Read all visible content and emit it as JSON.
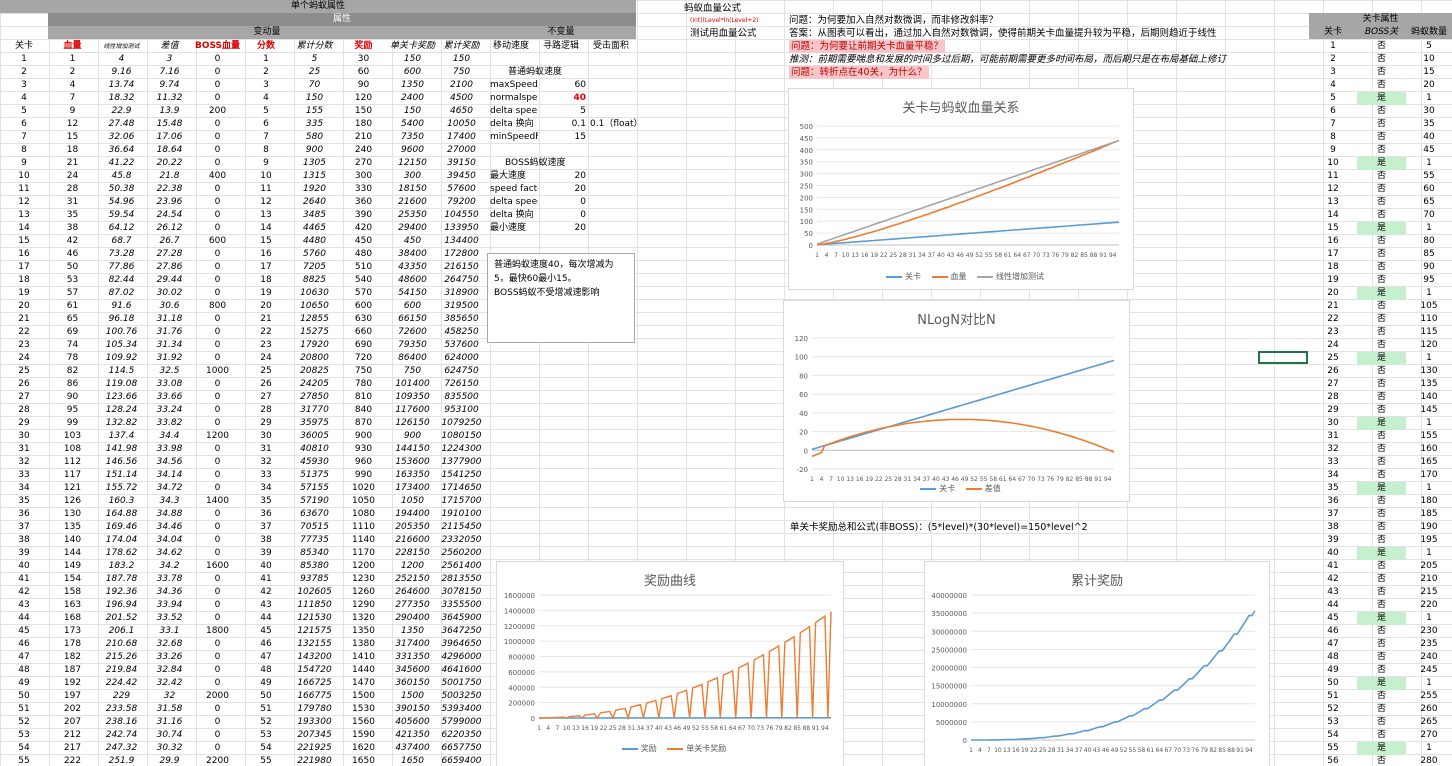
{
  "header": {
    "title": "单个蚂蚁属性",
    "group_attr": "属性",
    "group_var": "变动量",
    "group_const": "不变量",
    "formula_title": "蚂蚁血量公式",
    "formula_text": "(int)(Level*ln(Level+2)",
    "formula_label": "测试用血量公式",
    "right_title": "关卡属性"
  },
  "columns": [
    "关卡",
    "血量",
    "线性增加测试",
    "差值",
    "BOSS血量",
    "分数",
    "累计分数",
    "奖励",
    "单关卡奖励",
    "累计奖励",
    "移动速度",
    "寻路逻辑",
    "受击面积"
  ],
  "right_columns": [
    "关卡",
    "BOSS关",
    "蚂蚁数量"
  ],
  "rows": [
    [
      "1",
      "1",
      "4",
      "3",
      "0",
      "1",
      "5",
      "30",
      "150",
      "150"
    ],
    [
      "2",
      "2",
      "9.16",
      "7.16",
      "0",
      "2",
      "25",
      "60",
      "600",
      "750"
    ],
    [
      "3",
      "4",
      "13.74",
      "9.74",
      "0",
      "3",
      "70",
      "90",
      "1350",
      "2100"
    ],
    [
      "4",
      "7",
      "18.32",
      "11.32",
      "0",
      "4",
      "150",
      "120",
      "2400",
      "4500"
    ],
    [
      "5",
      "9",
      "22.9",
      "13.9",
      "200",
      "5",
      "155",
      "150",
      "150",
      "4650"
    ],
    [
      "6",
      "12",
      "27.48",
      "15.48",
      "0",
      "6",
      "335",
      "180",
      "5400",
      "10050"
    ],
    [
      "7",
      "15",
      "32.06",
      "17.06",
      "0",
      "7",
      "580",
      "210",
      "7350",
      "17400"
    ],
    [
      "8",
      "18",
      "36.64",
      "18.64",
      "0",
      "8",
      "900",
      "240",
      "9600",
      "27000"
    ],
    [
      "9",
      "21",
      "41.22",
      "20.22",
      "0",
      "9",
      "1305",
      "270",
      "12150",
      "39150"
    ],
    [
      "10",
      "24",
      "45.8",
      "21.8",
      "400",
      "10",
      "1315",
      "300",
      "300",
      "39450"
    ],
    [
      "11",
      "28",
      "50.38",
      "22.38",
      "0",
      "11",
      "1920",
      "330",
      "18150",
      "57600"
    ],
    [
      "12",
      "31",
      "54.96",
      "23.96",
      "0",
      "12",
      "2640",
      "360",
      "21600",
      "79200"
    ],
    [
      "13",
      "35",
      "59.54",
      "24.54",
      "0",
      "13",
      "3485",
      "390",
      "25350",
      "104550"
    ],
    [
      "14",
      "38",
      "64.12",
      "26.12",
      "0",
      "14",
      "4465",
      "420",
      "29400",
      "133950"
    ],
    [
      "15",
      "42",
      "68.7",
      "26.7",
      "600",
      "15",
      "4480",
      "450",
      "450",
      "134400"
    ],
    [
      "16",
      "46",
      "73.28",
      "27.28",
      "0",
      "16",
      "5760",
      "480",
      "38400",
      "172800"
    ],
    [
      "17",
      "50",
      "77.86",
      "27.86",
      "0",
      "17",
      "7205",
      "510",
      "43350",
      "216150"
    ],
    [
      "18",
      "53",
      "82.44",
      "29.44",
      "0",
      "18",
      "8825",
      "540",
      "48600",
      "264750"
    ],
    [
      "19",
      "57",
      "87.02",
      "30.02",
      "0",
      "19",
      "10630",
      "570",
      "54150",
      "318900"
    ],
    [
      "20",
      "61",
      "91.6",
      "30.6",
      "800",
      "20",
      "10650",
      "600",
      "600",
      "319500"
    ],
    [
      "21",
      "65",
      "96.18",
      "31.18",
      "0",
      "21",
      "12855",
      "630",
      "66150",
      "385650"
    ],
    [
      "22",
      "69",
      "100.76",
      "31.76",
      "0",
      "22",
      "15275",
      "660",
      "72600",
      "458250"
    ],
    [
      "23",
      "74",
      "105.34",
      "31.34",
      "0",
      "23",
      "17920",
      "690",
      "79350",
      "537600"
    ],
    [
      "24",
      "78",
      "109.92",
      "31.92",
      "0",
      "24",
      "20800",
      "720",
      "86400",
      "624000"
    ],
    [
      "25",
      "82",
      "114.5",
      "32.5",
      "1000",
      "25",
      "20825",
      "750",
      "750",
      "624750"
    ],
    [
      "26",
      "86",
      "119.08",
      "33.08",
      "0",
      "26",
      "24205",
      "780",
      "101400",
      "726150"
    ],
    [
      "27",
      "90",
      "123.66",
      "33.66",
      "0",
      "27",
      "27850",
      "810",
      "109350",
      "835500"
    ],
    [
      "28",
      "95",
      "128.24",
      "33.24",
      "0",
      "28",
      "31770",
      "840",
      "117600",
      "953100"
    ],
    [
      "29",
      "99",
      "132.82",
      "33.82",
      "0",
      "29",
      "35975",
      "870",
      "126150",
      "1079250"
    ],
    [
      "30",
      "103",
      "137.4",
      "34.4",
      "1200",
      "30",
      "36005",
      "900",
      "900",
      "1080150"
    ],
    [
      "31",
      "108",
      "141.98",
      "33.98",
      "0",
      "31",
      "40810",
      "930",
      "144150",
      "1224300"
    ],
    [
      "32",
      "112",
      "146.56",
      "34.56",
      "0",
      "32",
      "45930",
      "960",
      "153600",
      "1377900"
    ],
    [
      "33",
      "117",
      "151.14",
      "34.14",
      "0",
      "33",
      "51375",
      "990",
      "163350",
      "1541250"
    ],
    [
      "34",
      "121",
      "155.72",
      "34.72",
      "0",
      "34",
      "57155",
      "1020",
      "173400",
      "1714650"
    ],
    [
      "35",
      "126",
      "160.3",
      "34.3",
      "1400",
      "35",
      "57190",
      "1050",
      "1050",
      "1715700"
    ],
    [
      "36",
      "130",
      "164.88",
      "34.88",
      "0",
      "36",
      "63670",
      "1080",
      "194400",
      "1910100"
    ],
    [
      "37",
      "135",
      "169.46",
      "34.46",
      "0",
      "37",
      "70515",
      "1110",
      "205350",
      "2115450"
    ],
    [
      "38",
      "140",
      "174.04",
      "34.04",
      "0",
      "38",
      "77735",
      "1140",
      "216600",
      "2332050"
    ],
    [
      "39",
      "144",
      "178.62",
      "34.62",
      "0",
      "39",
      "85340",
      "1170",
      "228150",
      "2560200"
    ],
    [
      "40",
      "149",
      "183.2",
      "34.2",
      "1600",
      "40",
      "85380",
      "1200",
      "1200",
      "2561400"
    ],
    [
      "41",
      "154",
      "187.78",
      "33.78",
      "0",
      "41",
      "93785",
      "1230",
      "252150",
      "2813550"
    ],
    [
      "42",
      "158",
      "192.36",
      "34.36",
      "0",
      "42",
      "102605",
      "1260",
      "264600",
      "3078150"
    ],
    [
      "43",
      "163",
      "196.94",
      "33.94",
      "0",
      "43",
      "111850",
      "1290",
      "277350",
      "3355500"
    ],
    [
      "44",
      "168",
      "201.52",
      "33.52",
      "0",
      "44",
      "121530",
      "1320",
      "290400",
      "3645900"
    ],
    [
      "45",
      "173",
      "206.1",
      "33.1",
      "1800",
      "45",
      "121575",
      "1350",
      "1350",
      "3647250"
    ],
    [
      "46",
      "178",
      "210.68",
      "32.68",
      "0",
      "46",
      "132155",
      "1380",
      "317400",
      "3964650"
    ],
    [
      "47",
      "182",
      "215.26",
      "33.26",
      "0",
      "47",
      "143200",
      "1410",
      "331350",
      "4296000"
    ],
    [
      "48",
      "187",
      "219.84",
      "32.84",
      "0",
      "48",
      "154720",
      "1440",
      "345600",
      "4641600"
    ],
    [
      "49",
      "192",
      "224.42",
      "32.42",
      "0",
      "49",
      "166725",
      "1470",
      "360150",
      "5001750"
    ],
    [
      "50",
      "197",
      "229",
      "32",
      "2000",
      "50",
      "166775",
      "1500",
      "1500",
      "5003250"
    ],
    [
      "51",
      "202",
      "233.58",
      "31.58",
      "0",
      "51",
      "179780",
      "1530",
      "390150",
      "5393400"
    ],
    [
      "52",
      "207",
      "238.16",
      "31.16",
      "0",
      "52",
      "193300",
      "1560",
      "405600",
      "5799000"
    ],
    [
      "53",
      "212",
      "242.74",
      "30.74",
      "0",
      "53",
      "207345",
      "1590",
      "421350",
      "6220350"
    ],
    [
      "54",
      "217",
      "247.32",
      "30.32",
      "0",
      "54",
      "221925",
      "1620",
      "437400",
      "6657750"
    ],
    [
      "55",
      "222",
      "251.9",
      "29.9",
      "2200",
      "55",
      "221980",
      "1650",
      "1650",
      "6659400"
    ]
  ],
  "right_rows": [
    [
      "1",
      "否",
      "5"
    ],
    [
      "2",
      "否",
      "10"
    ],
    [
      "3",
      "否",
      "15"
    ],
    [
      "4",
      "否",
      "20"
    ],
    [
      "5",
      "是",
      "1"
    ],
    [
      "6",
      "否",
      "30"
    ],
    [
      "7",
      "否",
      "35"
    ],
    [
      "8",
      "否",
      "40"
    ],
    [
      "9",
      "否",
      "45"
    ],
    [
      "10",
      "是",
      "1"
    ],
    [
      "11",
      "否",
      "55"
    ],
    [
      "12",
      "否",
      "60"
    ],
    [
      "13",
      "否",
      "65"
    ],
    [
      "14",
      "否",
      "70"
    ],
    [
      "15",
      "是",
      "1"
    ],
    [
      "16",
      "否",
      "80"
    ],
    [
      "17",
      "否",
      "85"
    ],
    [
      "18",
      "否",
      "90"
    ],
    [
      "19",
      "否",
      "95"
    ],
    [
      "20",
      "是",
      "1"
    ],
    [
      "21",
      "否",
      "105"
    ],
    [
      "22",
      "否",
      "110"
    ],
    [
      "23",
      "否",
      "115"
    ],
    [
      "24",
      "否",
      "120"
    ],
    [
      "25",
      "是",
      "1"
    ],
    [
      "26",
      "否",
      "130"
    ],
    [
      "27",
      "否",
      "135"
    ],
    [
      "28",
      "否",
      "140"
    ],
    [
      "29",
      "否",
      "145"
    ],
    [
      "30",
      "是",
      "1"
    ],
    [
      "31",
      "否",
      "155"
    ],
    [
      "32",
      "否",
      "160"
    ],
    [
      "33",
      "否",
      "165"
    ],
    [
      "34",
      "否",
      "170"
    ],
    [
      "35",
      "是",
      "1"
    ],
    [
      "36",
      "否",
      "180"
    ],
    [
      "37",
      "否",
      "185"
    ],
    [
      "38",
      "否",
      "190"
    ],
    [
      "39",
      "否",
      "195"
    ],
    [
      "40",
      "是",
      "1"
    ],
    [
      "41",
      "否",
      "205"
    ],
    [
      "42",
      "否",
      "210"
    ],
    [
      "43",
      "否",
      "215"
    ],
    [
      "44",
      "否",
      "220"
    ],
    [
      "45",
      "是",
      "1"
    ],
    [
      "46",
      "否",
      "230"
    ],
    [
      "47",
      "否",
      "235"
    ],
    [
      "48",
      "否",
      "240"
    ],
    [
      "49",
      "否",
      "245"
    ],
    [
      "50",
      "是",
      "1"
    ],
    [
      "51",
      "否",
      "255"
    ],
    [
      "52",
      "否",
      "260"
    ],
    [
      "53",
      "否",
      "265"
    ],
    [
      "54",
      "否",
      "270"
    ],
    [
      "55",
      "是",
      "1"
    ],
    [
      "56",
      "否",
      "280"
    ]
  ],
  "normal_ant": {
    "title": "普通蚂蚁速度",
    "params": [
      [
        "maxSpeedF",
        "60"
      ],
      [
        "normalspee",
        "40"
      ],
      [
        "delta spee",
        "5"
      ],
      [
        "delta 换向",
        "0.1"
      ],
      [
        "minSpeedF",
        "15"
      ]
    ],
    "extra": "0.1（float）"
  },
  "boss_ant": {
    "title": "BOSS蚂蚁速度",
    "params": [
      [
        "最大速度",
        "20"
      ],
      [
        "speed facto",
        "20"
      ],
      [
        "delta speed",
        "0"
      ],
      [
        "delta 换向",
        "0"
      ],
      [
        "最小速度",
        "20"
      ]
    ]
  },
  "textbox": {
    "line1": "普通蚂蚁速度40，每次增减为",
    "line2": "5，最快60最小15。",
    "line3": "BOSS蚂蚁不受增减速影响"
  },
  "notes": [
    {
      "text": "问题：为何要加入自然对数微调，而非修改斜率？",
      "style": "plain"
    },
    {
      "text": "答案：从图表可以看出，通过加入自然对数微调，使得前期关卡血量提升较为平稳，后期则趋近于线性",
      "style": "plain"
    },
    {
      "text": "问题：为何要让前期关卡血量平稳？",
      "style": "pink"
    },
    {
      "text": "推测：前期需要喘息和发展的时间多过后期，可能前期需要更多时间布局，而后期只是在布局基础上修订",
      "style": "italic"
    },
    {
      "text": "问题：转折点在40关，为什么？",
      "style": "pink"
    }
  ],
  "reward_formula": "单关卡奖励总和公式(非BOSS)：(5*level)*(30*level)=150*level^2",
  "colors": {
    "blue": "#5b9bd5",
    "orange": "#ed7d31",
    "gray": "#a5a5a5",
    "header": "#a6a6a6",
    "green": "#c6efce",
    "pink": "#f8c6c9"
  },
  "x_tick_labels": [
    "1",
    "4",
    "7",
    "10",
    "13",
    "16",
    "19",
    "22",
    "25",
    "28",
    "31",
    "34",
    "37",
    "40",
    "43",
    "46",
    "49",
    "52",
    "55",
    "58",
    "61",
    "64",
    "67",
    "70",
    "73",
    "76",
    "79",
    "82",
    "85",
    "88",
    "91",
    "94"
  ],
  "chart_data": [
    {
      "type": "line",
      "title": "关卡与蚂蚁血量关系",
      "ylim": [
        0,
        500
      ],
      "y_ticks": [
        "0",
        "50",
        "100",
        "150",
        "200",
        "250",
        "300",
        "350",
        "400",
        "450",
        "500"
      ],
      "series": [
        {
          "name": "关卡"
        },
        {
          "name": "血量"
        },
        {
          "name": "线性增加测试"
        }
      ],
      "points": 96
    },
    {
      "type": "line",
      "title": "NLogN对比N",
      "ylim": [
        -20,
        120
      ],
      "y_ticks": [
        "-20",
        "0",
        "20",
        "40",
        "60",
        "80",
        "100",
        "120"
      ],
      "series": [
        {
          "name": "关卡"
        },
        {
          "name": "差值"
        }
      ],
      "points": 96
    },
    {
      "type": "line",
      "title": "奖励曲线",
      "ylim": [
        0,
        1600000
      ],
      "y_ticks": [
        "0",
        "200000",
        "400000",
        "600000",
        "800000",
        "1000000",
        "1200000",
        "1400000",
        "1600000"
      ],
      "series": [
        {
          "name": "奖励"
        },
        {
          "name": "单关卡奖励"
        }
      ],
      "points": 96
    },
    {
      "type": "line",
      "title": "累计奖励",
      "ylim": [
        0,
        40000000
      ],
      "y_ticks": [
        "0",
        "5000000",
        "10000000",
        "15000000",
        "20000000",
        "25000000",
        "30000000",
        "35000000",
        "40000000"
      ],
      "series": [
        {
          "name": "累计奖励"
        }
      ],
      "points": 96
    }
  ]
}
